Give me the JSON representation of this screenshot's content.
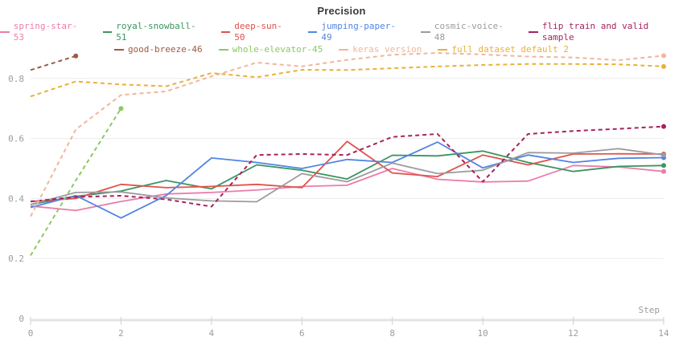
{
  "title": "Precision",
  "chart_data": {
    "type": "line",
    "title": "Precision",
    "xlabel": "Step",
    "ylabel": "",
    "x": [
      0,
      1,
      2,
      3,
      4,
      5,
      6,
      7,
      8,
      9,
      10,
      11,
      12,
      13,
      14
    ],
    "xlim": [
      0,
      14
    ],
    "ylim": [
      0,
      0.95
    ],
    "grid": true,
    "legend_position": "top",
    "legend_rows": [
      6,
      4
    ],
    "x_ticks": [
      {
        "label": "0",
        "value": 0
      },
      {
        "label": "2",
        "value": 2
      },
      {
        "label": "4",
        "value": 4
      },
      {
        "label": "6",
        "value": 6
      },
      {
        "label": "8",
        "value": 8
      },
      {
        "label": "10",
        "value": 10
      },
      {
        "label": "12",
        "value": 12
      },
      {
        "label": "14",
        "value": 14
      }
    ],
    "y_ticks": [
      {
        "label": "0.8",
        "value": 0.8
      },
      {
        "label": "0.6",
        "value": 0.6
      },
      {
        "label": "0.4",
        "value": 0.4
      },
      {
        "label": "0.2",
        "value": 0.2
      },
      {
        "label": "0",
        "value": 0
      }
    ],
    "series": [
      {
        "name": "spring-star-53",
        "color": "#ec7cab",
        "dash": false,
        "values": [
          0.375,
          0.36,
          0.39,
          0.415,
          0.42,
          0.428,
          0.44,
          0.444,
          0.5,
          0.464,
          0.455,
          0.458,
          0.51,
          0.505,
          0.49
        ]
      },
      {
        "name": "royal-snowball-51",
        "color": "#3a9560",
        "dash": false,
        "values": [
          0.38,
          0.407,
          0.425,
          0.46,
          0.432,
          0.512,
          0.494,
          0.465,
          0.544,
          0.542,
          0.558,
          0.52,
          0.49,
          0.507,
          0.51
        ]
      },
      {
        "name": "deep-sun-50",
        "color": "#e0524b",
        "dash": false,
        "values": [
          0.39,
          0.4,
          0.447,
          0.436,
          0.44,
          0.447,
          0.436,
          0.59,
          0.485,
          0.473,
          0.545,
          0.512,
          0.548,
          0.549,
          0.548
        ]
      },
      {
        "name": "jumping-paper-49",
        "color": "#5285e2",
        "dash": false,
        "values": [
          0.37,
          0.41,
          0.335,
          0.41,
          0.535,
          0.52,
          0.5,
          0.53,
          0.52,
          0.588,
          0.502,
          0.545,
          0.52,
          0.534,
          0.536
        ]
      },
      {
        "name": "cosmic-voice-48",
        "color": "#9c9ca0",
        "dash": false,
        "values": [
          0.38,
          0.42,
          0.422,
          0.402,
          0.392,
          0.389,
          0.483,
          0.456,
          0.518,
          0.483,
          0.494,
          0.553,
          0.551,
          0.566,
          0.545
        ]
      },
      {
        "name": "flip train and valid sample",
        "color": "#a8215e",
        "dash": true,
        "values": [
          0.39,
          0.405,
          0.409,
          0.397,
          0.373,
          0.545,
          0.548,
          0.545,
          0.605,
          0.615,
          0.456,
          0.615,
          0.625,
          0.632,
          0.64
        ]
      },
      {
        "name": "good-breeze-46",
        "color": "#9d5b44",
        "dash": true,
        "values": [
          0.828,
          0.875
        ]
      },
      {
        "name": "whole-elevator-45",
        "color": "#8ac963",
        "dash": true,
        "values": [
          0.21,
          0.46,
          0.7
        ]
      },
      {
        "name": "keras version",
        "color": "#f2b59c",
        "dash": true,
        "values": [
          0.34,
          0.63,
          0.745,
          0.757,
          0.807,
          0.853,
          0.84,
          0.862,
          0.879,
          0.885,
          0.88,
          0.873,
          0.87,
          0.861,
          0.876
        ]
      },
      {
        "name": "full dataset default 2",
        "color": "#eab038",
        "dash": true,
        "values": [
          0.74,
          0.79,
          0.78,
          0.774,
          0.818,
          0.804,
          0.829,
          0.828,
          0.834,
          0.84,
          0.845,
          0.848,
          0.848,
          0.847,
          0.84
        ]
      }
    ],
    "style_colors": {
      "gridline": "#ececec",
      "axis_line": "#e4e4e4",
      "tick_mark": "#d0d0d0",
      "tick_label": "#9a9da0"
    }
  }
}
